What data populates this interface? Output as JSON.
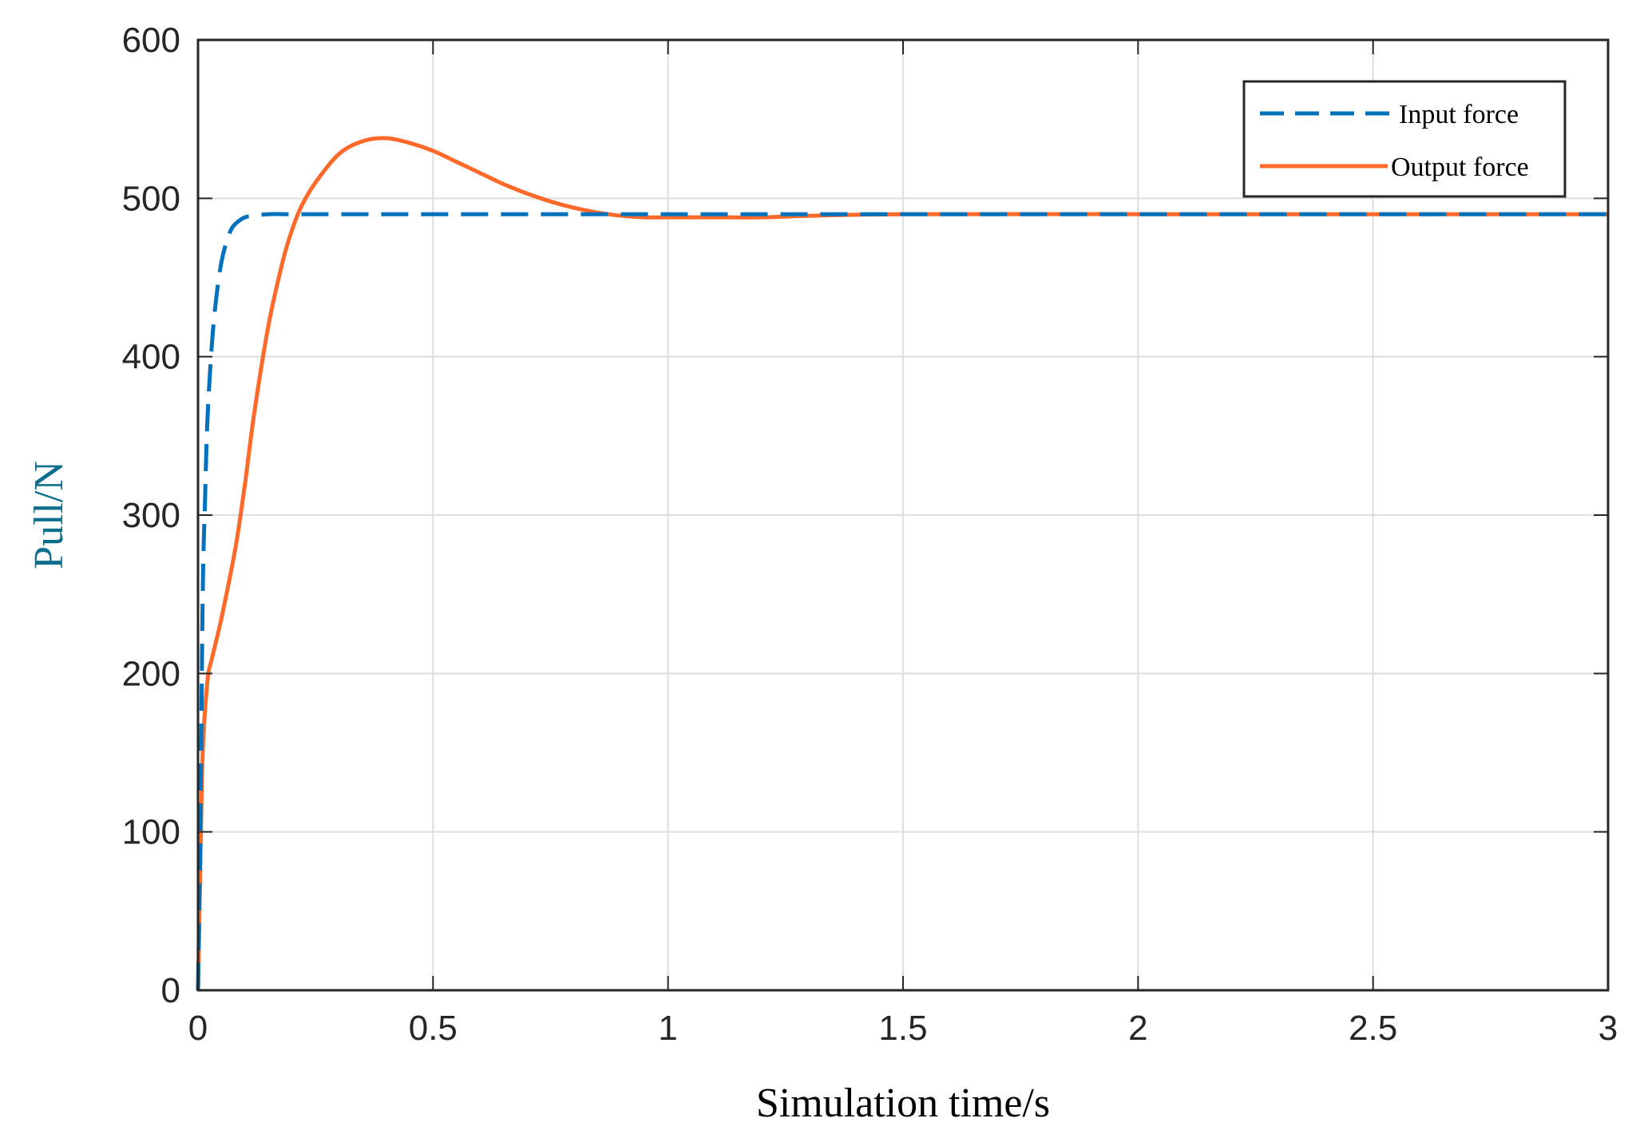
{
  "chart_data": {
    "type": "line",
    "title": "",
    "xlabel": "Simulation time/s",
    "ylabel": "Pull/N",
    "xlim": [
      0,
      3
    ],
    "ylim": [
      0,
      600
    ],
    "xticks": [
      0,
      0.5,
      1,
      1.5,
      2,
      2.5,
      3
    ],
    "xtick_labels": [
      "0",
      "0.5",
      "1",
      "1.5",
      "2",
      "2.5",
      "3"
    ],
    "yticks": [
      0,
      100,
      200,
      300,
      400,
      500,
      600
    ],
    "ytick_labels": [
      "0",
      "100",
      "200",
      "300",
      "400",
      "500",
      "600"
    ],
    "grid": true,
    "legend_position": "top-right",
    "colors": {
      "xlabel": "#000000",
      "ylabel": "#0f6e8c"
    },
    "series": [
      {
        "name": "Input force",
        "color": "#0072bd",
        "style": "dashed",
        "x": [
          0,
          0.005,
          0.01,
          0.015,
          0.02,
          0.03,
          0.04,
          0.05,
          0.06,
          0.07,
          0.08,
          0.1,
          0.12,
          0.15,
          0.2,
          0.3,
          0.5,
          1,
          1.5,
          2,
          2.5,
          3
        ],
        "y": [
          0,
          100,
          250,
          310,
          360,
          410,
          440,
          460,
          472,
          480,
          484,
          488,
          489,
          490,
          490,
          490,
          490,
          490,
          490,
          490,
          490,
          490
        ]
      },
      {
        "name": "Output force",
        "color": "#ff6a2b",
        "style": "solid",
        "x": [
          0,
          0.005,
          0.01,
          0.02,
          0.03,
          0.05,
          0.08,
          0.1,
          0.12,
          0.15,
          0.18,
          0.2,
          0.22,
          0.25,
          0.3,
          0.35,
          0.4,
          0.45,
          0.5,
          0.55,
          0.6,
          0.65,
          0.7,
          0.75,
          0.8,
          0.85,
          0.9,
          0.95,
          1.0,
          1.05,
          1.1,
          1.2,
          1.3,
          1.5,
          2,
          2.5,
          3
        ],
        "y": [
          0,
          80,
          150,
          195,
          210,
          235,
          280,
          320,
          365,
          420,
          460,
          480,
          495,
          510,
          528,
          536,
          538,
          535,
          530,
          523,
          516,
          509,
          503,
          498,
          494,
          491,
          489,
          488,
          488,
          488,
          488,
          488,
          489,
          490,
          490,
          490,
          490
        ]
      }
    ]
  }
}
